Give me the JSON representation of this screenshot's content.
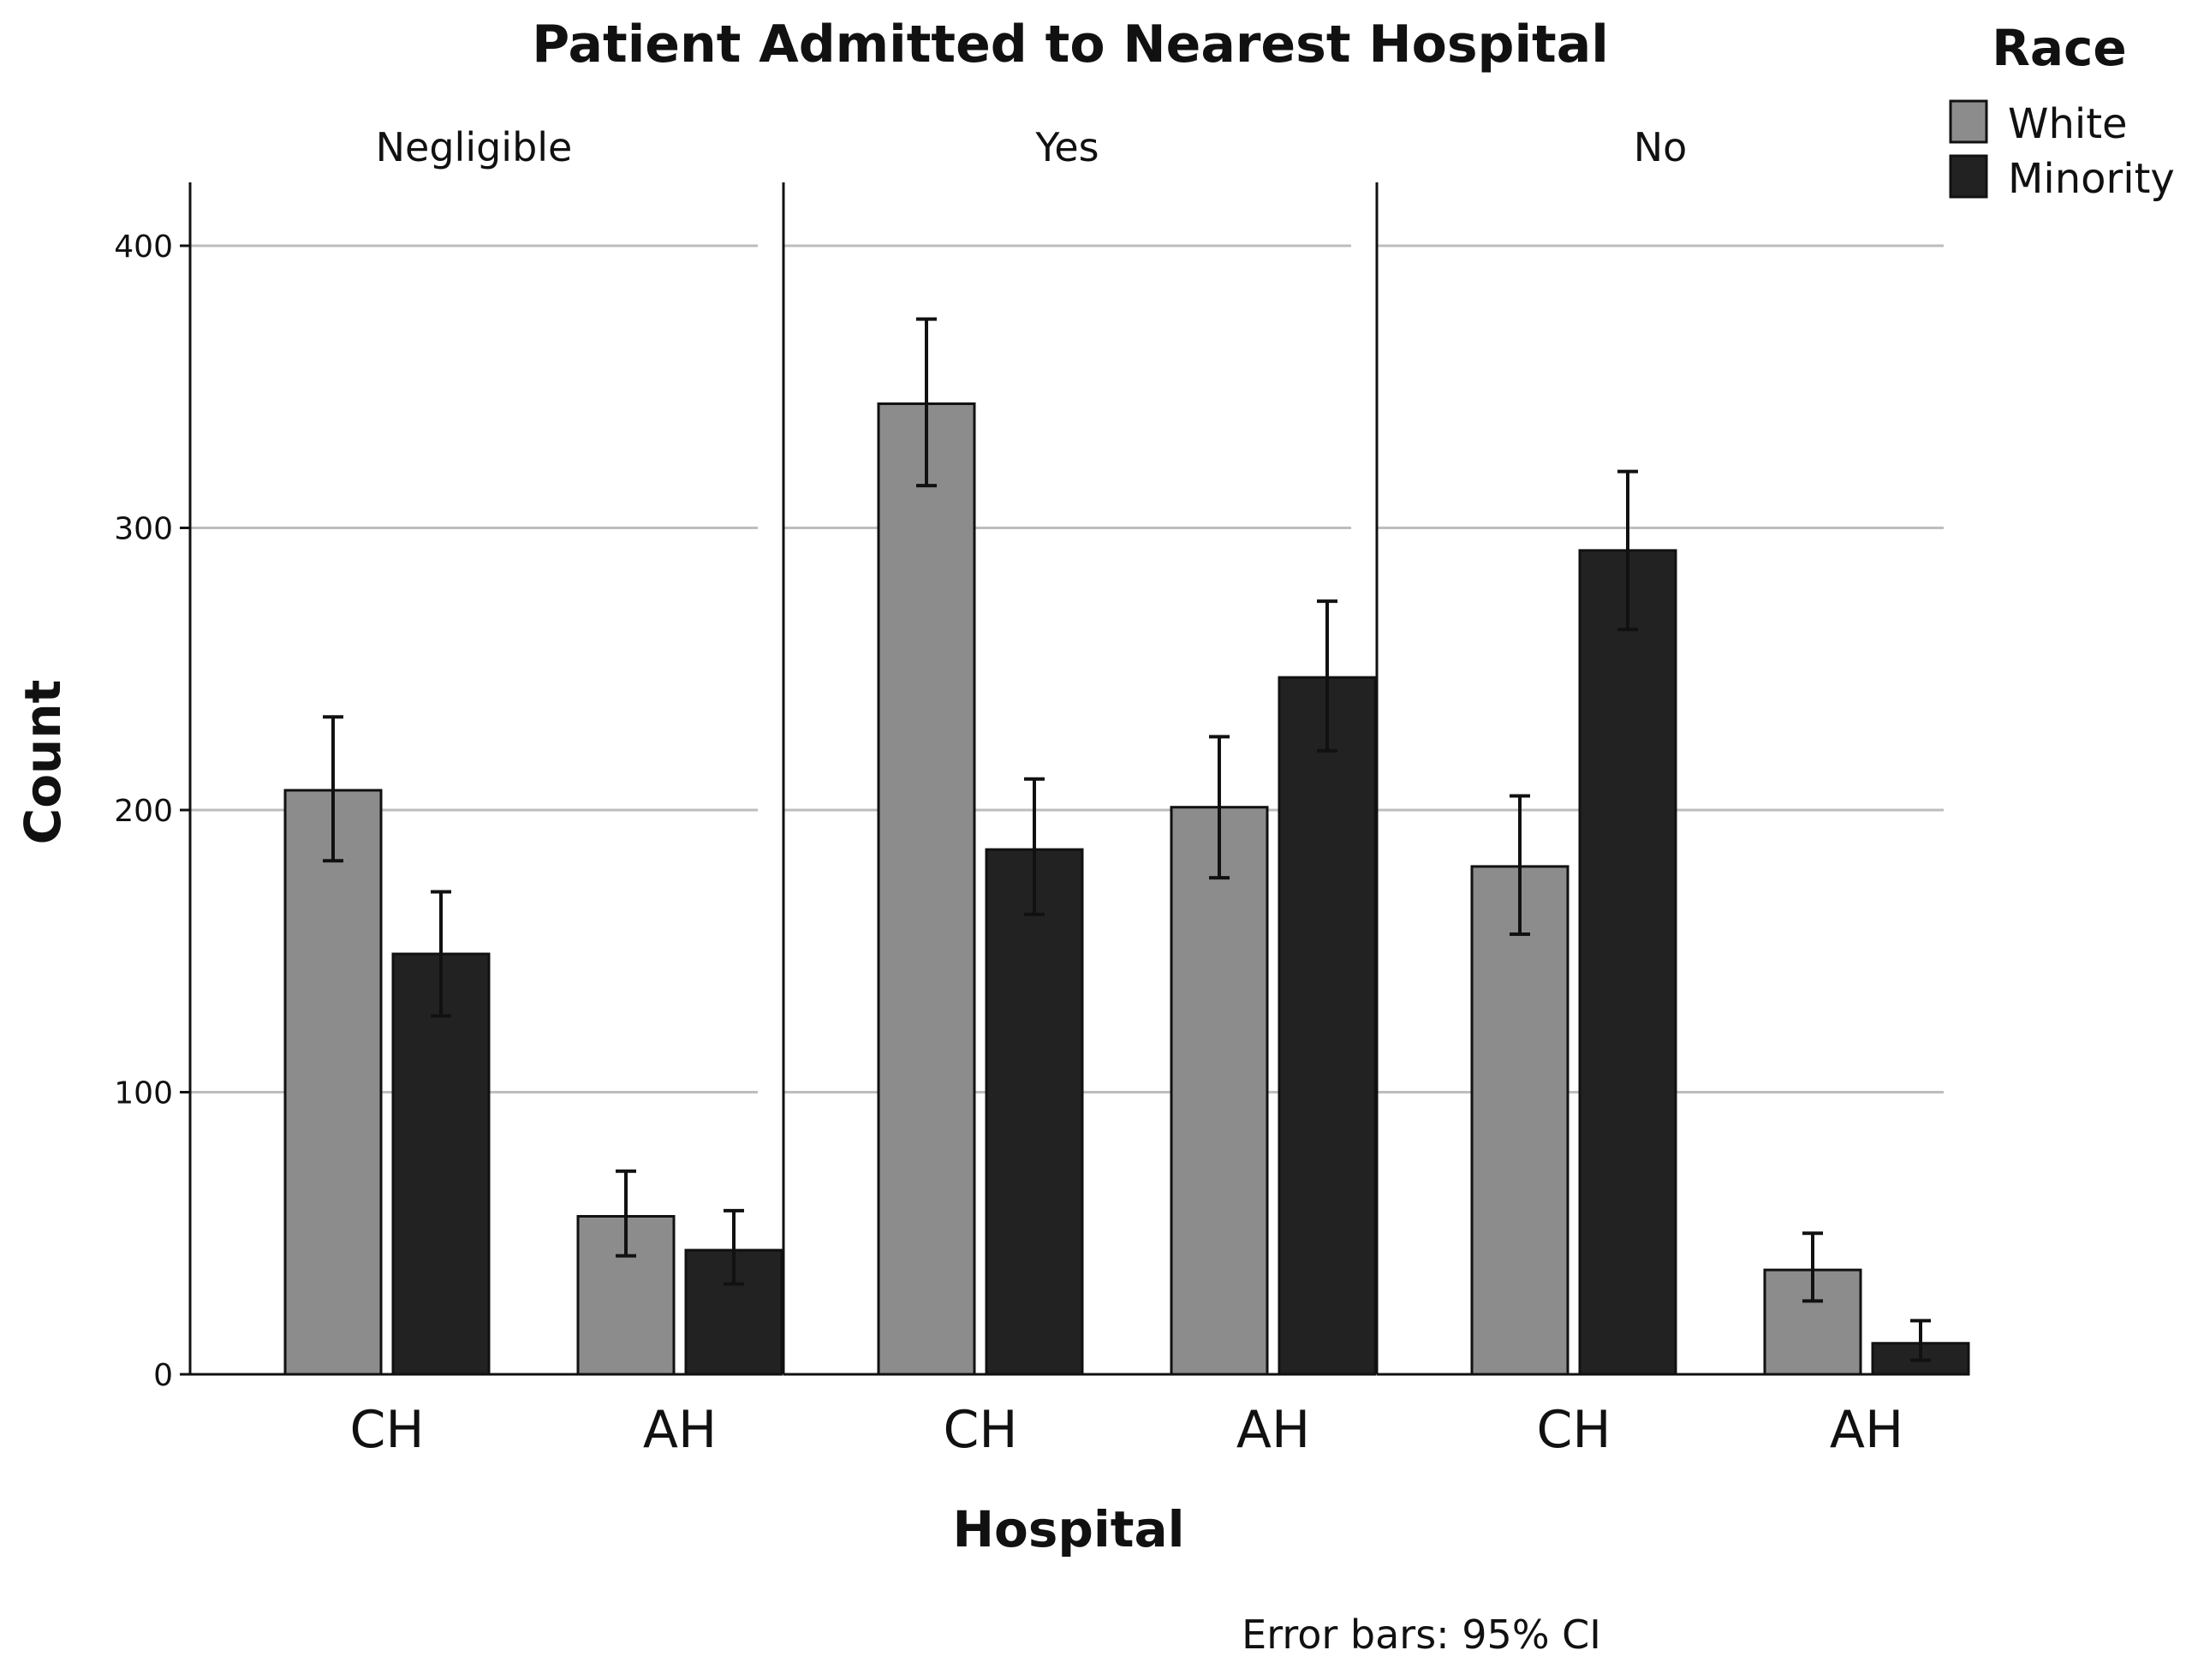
{
  "chart_data": {
    "type": "bar",
    "title": "Patient Admitted to Nearest Hospital",
    "xlabel": "Hospital",
    "ylabel": "Count",
    "ylim": [
      0,
      420
    ],
    "yticks": [
      0,
      100,
      200,
      300,
      400
    ],
    "grid": true,
    "legend": {
      "title": "Race",
      "position": "top-right"
    },
    "categories": [
      "CH",
      "AH"
    ],
    "series_styles": [
      {
        "name": "White",
        "color": "#8c8c8c"
      },
      {
        "name": "Minority",
        "color": "#222222"
      }
    ],
    "facets": [
      {
        "label": "Negligible",
        "series": [
          {
            "name": "White",
            "values": [
              207,
              56
            ],
            "ci_low": [
              182,
              42
            ],
            "ci_high": [
              233,
              72
            ]
          },
          {
            "name": "Minority",
            "values": [
              149,
              44
            ],
            "ci_low": [
              127,
              32
            ],
            "ci_high": [
              171,
              58
            ]
          }
        ]
      },
      {
        "label": "Yes",
        "series": [
          {
            "name": "White",
            "values": [
              344,
              201
            ],
            "ci_low": [
              315,
              176
            ],
            "ci_high": [
              374,
              226
            ]
          },
          {
            "name": "Minority",
            "values": [
              186,
              247
            ],
            "ci_low": [
              163,
              221
            ],
            "ci_high": [
              211,
              274
            ]
          }
        ]
      },
      {
        "label": "No",
        "series": [
          {
            "name": "White",
            "values": [
              180,
              37
            ],
            "ci_low": [
              156,
              26
            ],
            "ci_high": [
              205,
              50
            ]
          },
          {
            "name": "Minority",
            "values": [
              292,
              11
            ],
            "ci_low": [
              264,
              5
            ],
            "ci_high": [
              320,
              19
            ]
          }
        ]
      }
    ],
    "footnote": "Error bars: 95% CI"
  }
}
